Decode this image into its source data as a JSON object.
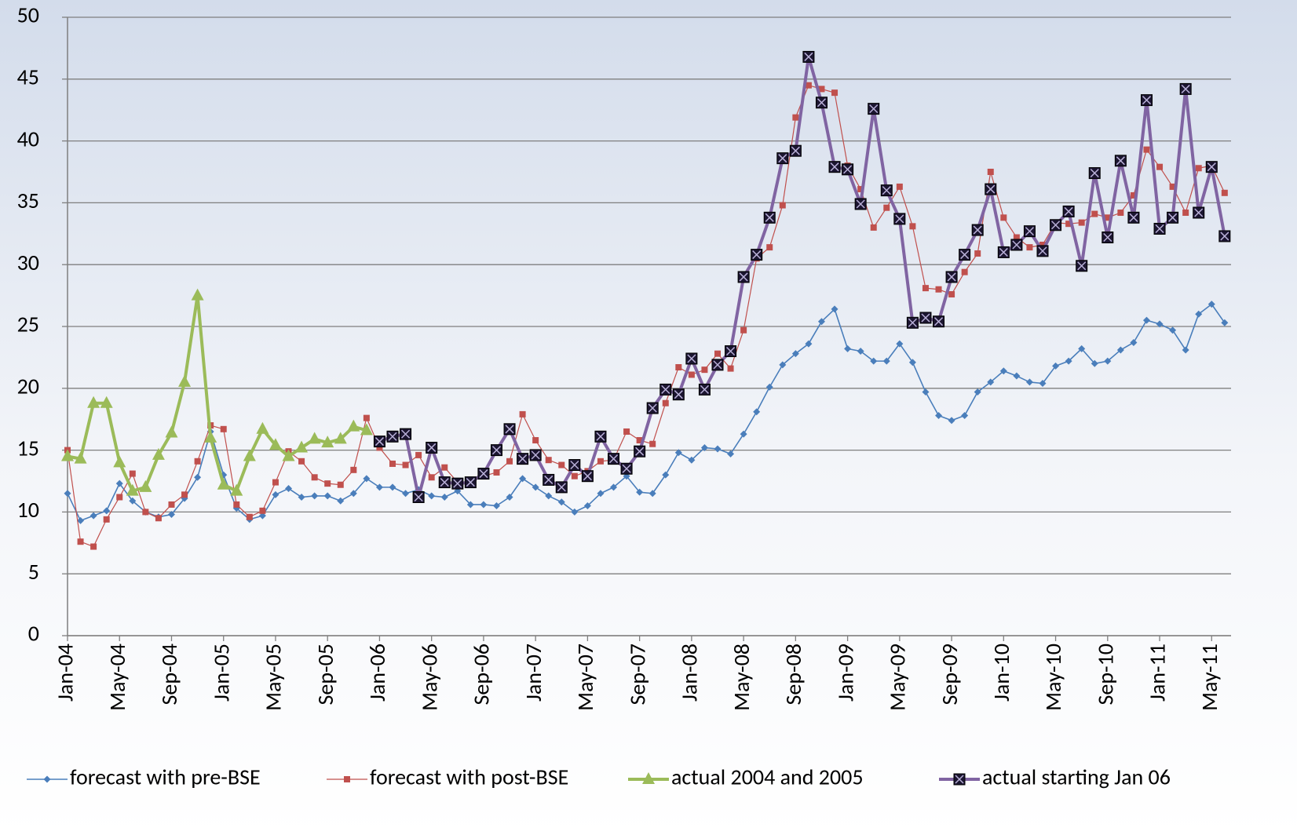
{
  "chart_data": {
    "type": "line",
    "categories": [
      "Jan-04",
      null,
      null,
      null,
      "May-04",
      null,
      null,
      null,
      "Sep-04",
      null,
      null,
      null,
      "Jan-05",
      null,
      null,
      null,
      "May-05",
      null,
      null,
      null,
      "Sep-05",
      null,
      null,
      null,
      "Jan-06",
      null,
      null,
      null,
      "May-06",
      null,
      null,
      null,
      "Sep-06",
      null,
      null,
      null,
      "Jan-07",
      null,
      null,
      null,
      "May-07",
      null,
      null,
      null,
      "Sep-07",
      null,
      null,
      null,
      "Jan-08",
      null,
      null,
      null,
      "May-08",
      null,
      null,
      null,
      "Sep-08",
      null,
      null,
      null,
      "Jan-09",
      null,
      null,
      null,
      "May-09",
      null,
      null,
      null,
      "Sep-09",
      null,
      null,
      null,
      "Jan-10",
      null,
      null,
      null,
      "May-10",
      null,
      null,
      null,
      "Sep-10",
      null,
      null,
      null,
      "Jan-11",
      null,
      null,
      null,
      "May-11",
      null
    ],
    "ylim": [
      0,
      50
    ],
    "yticks": [
      0,
      5,
      10,
      15,
      20,
      25,
      30,
      35,
      40,
      45,
      50
    ],
    "grid": true,
    "series": [
      {
        "name": "forecast with pre-BSE",
        "color": "#4a7ebb",
        "marker": "diamond",
        "values": [
          11.5,
          9.3,
          9.7,
          10.1,
          12.3,
          10.9,
          10.0,
          9.6,
          9.8,
          11.1,
          12.8,
          16.5,
          13.0,
          10.3,
          9.4,
          9.7,
          11.4,
          11.9,
          11.2,
          11.3,
          11.3,
          10.9,
          11.5,
          12.7,
          12.0,
          12.0,
          11.5,
          11.8,
          11.3,
          11.2,
          11.7,
          10.6,
          10.6,
          10.5,
          11.2,
          12.7,
          12.0,
          11.3,
          10.8,
          10.0,
          10.5,
          11.5,
          12.0,
          12.9,
          11.6,
          11.5,
          13.0,
          14.8,
          14.2,
          15.2,
          15.1,
          14.7,
          16.3,
          18.1,
          20.1,
          21.9,
          22.8,
          23.6,
          25.4,
          26.4,
          23.2,
          23.0,
          22.2,
          22.2,
          23.6,
          22.1,
          19.7,
          17.8,
          17.4,
          17.8,
          19.7,
          20.5,
          21.4,
          21.0,
          20.5,
          20.4,
          21.8,
          22.2,
          23.2,
          22.0,
          22.2,
          23.1,
          23.7,
          25.5,
          25.2,
          24.7,
          23.1,
          26.0,
          26.8,
          25.3
        ]
      },
      {
        "name": "forecast with post-BSE",
        "color": "#c0504d",
        "marker": "square",
        "values": [
          15.0,
          7.6,
          7.2,
          9.4,
          11.2,
          13.1,
          10.0,
          9.5,
          10.6,
          11.4,
          14.1,
          17.0,
          16.7,
          10.6,
          9.6,
          10.1,
          12.4,
          14.9,
          14.1,
          12.8,
          12.3,
          12.2,
          13.4,
          17.6,
          15.2,
          13.9,
          13.8,
          14.6,
          12.8,
          13.6,
          12.4,
          12.4,
          12.9,
          13.2,
          14.1,
          17.9,
          15.8,
          14.2,
          13.8,
          12.9,
          13.3,
          14.1,
          14.2,
          16.5,
          15.8,
          15.5,
          18.8,
          21.7,
          21.1,
          21.5,
          22.8,
          21.6,
          24.7,
          30.5,
          31.4,
          34.8,
          41.9,
          44.5,
          44.2,
          43.9,
          38.0,
          36.1,
          33.0,
          34.6,
          36.3,
          33.1,
          28.1,
          28.0,
          27.6,
          29.4,
          30.9,
          37.5,
          33.8,
          32.2,
          31.4,
          31.6,
          33.4,
          33.3,
          33.4,
          34.1,
          33.8,
          34.2,
          35.6,
          39.3,
          37.9,
          36.3,
          34.2,
          37.8,
          38.0,
          35.8
        ]
      },
      {
        "name": "actual 2004 and 2005",
        "color": "#9bbb59",
        "marker": "triangle",
        "values": [
          14.5,
          14.3,
          18.8,
          18.8,
          14.0,
          11.7,
          12.0,
          14.6,
          16.4,
          20.5,
          27.5,
          16.0,
          12.2,
          11.7,
          14.5,
          16.7,
          15.4,
          14.5,
          15.2,
          15.9,
          15.6,
          15.9,
          16.9,
          16.6,
          null,
          null,
          null,
          null,
          null,
          null,
          null,
          null,
          null,
          null,
          null,
          null,
          null,
          null,
          null,
          null,
          null,
          null,
          null,
          null,
          null,
          null,
          null,
          null,
          null,
          null,
          null,
          null,
          null,
          null,
          null,
          null,
          null,
          null,
          null,
          null,
          null,
          null,
          null,
          null,
          null,
          null,
          null,
          null,
          null,
          null,
          null,
          null,
          null,
          null,
          null,
          null,
          null,
          null,
          null,
          null,
          null,
          null,
          null,
          null,
          null,
          null,
          null,
          null,
          null,
          null
        ]
      },
      {
        "name": "actual starting Jan 06",
        "color": "#8064a2",
        "marker": "xsquare",
        "values": [
          null,
          null,
          null,
          null,
          null,
          null,
          null,
          null,
          null,
          null,
          null,
          null,
          null,
          null,
          null,
          null,
          null,
          null,
          null,
          null,
          null,
          null,
          null,
          null,
          15.7,
          16.1,
          16.3,
          11.2,
          15.2,
          12.4,
          12.3,
          12.4,
          13.1,
          15.0,
          16.7,
          14.3,
          14.6,
          12.6,
          12.0,
          13.8,
          12.9,
          16.1,
          14.3,
          13.5,
          14.9,
          18.4,
          19.9,
          19.5,
          22.4,
          19.9,
          21.9,
          23.0,
          29.0,
          30.8,
          33.8,
          38.6,
          39.2,
          46.8,
          43.1,
          37.9,
          37.7,
          34.9,
          42.6,
          36.0,
          33.7,
          25.3,
          25.7,
          25.4,
          29.0,
          30.8,
          32.8,
          36.1,
          31.0,
          31.6,
          32.7,
          31.1,
          33.2,
          34.3,
          29.9,
          37.4,
          32.2,
          38.4,
          33.8,
          43.3,
          32.9,
          33.8,
          44.2,
          34.2,
          37.9,
          32.3
        ]
      }
    ]
  }
}
